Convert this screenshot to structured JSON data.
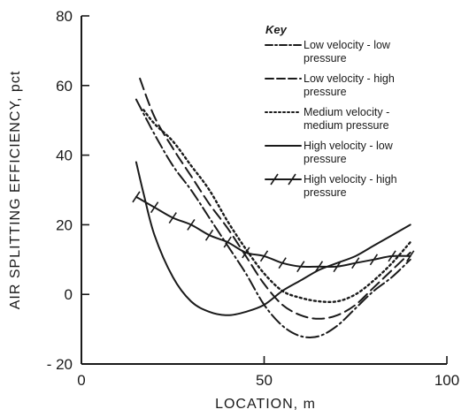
{
  "chart_data": {
    "type": "line",
    "xlabel": "LOCATION, m",
    "ylabel": "AIR SPLITTING EFFICIENCY, pct",
    "xlim": [
      0,
      100
    ],
    "ylim": [
      -20,
      80
    ],
    "x_ticks": [
      0,
      50,
      100
    ],
    "y_ticks": [
      -20,
      0,
      20,
      40,
      60,
      80
    ],
    "x_tick_labels": [
      "0",
      "50",
      "100"
    ],
    "y_tick_labels": [
      "- 20",
      "0",
      "20",
      "40",
      "60",
      "80"
    ],
    "grid": false,
    "legend": {
      "title": "Key",
      "placement": "top-right"
    },
    "series": [
      {
        "name": "Low velocity - low pressure",
        "legend_lines": [
          "Low velocity - low",
          "pressure"
        ],
        "style": "dashdot",
        "color": "#1a1a1a",
        "points": [
          [
            15,
            56
          ],
          [
            20,
            46
          ],
          [
            25,
            37
          ],
          [
            30,
            30
          ],
          [
            35,
            22
          ],
          [
            40,
            14
          ],
          [
            45,
            6
          ],
          [
            50,
            -3
          ],
          [
            55,
            -9
          ],
          [
            60,
            -12
          ],
          [
            65,
            -12
          ],
          [
            70,
            -9
          ],
          [
            75,
            -4
          ],
          [
            80,
            1
          ],
          [
            85,
            5
          ],
          [
            90,
            10
          ]
        ]
      },
      {
        "name": "Low velocity - high pressure",
        "legend_lines": [
          "Low velocity - high",
          "pressure"
        ],
        "style": "dashed",
        "color": "#1a1a1a",
        "points": [
          [
            16,
            62
          ],
          [
            20,
            51
          ],
          [
            25,
            42
          ],
          [
            30,
            34
          ],
          [
            35,
            26
          ],
          [
            40,
            19
          ],
          [
            45,
            11
          ],
          [
            50,
            3
          ],
          [
            55,
            -3
          ],
          [
            60,
            -6
          ],
          [
            65,
            -7
          ],
          [
            70,
            -6
          ],
          [
            75,
            -3
          ],
          [
            80,
            2
          ],
          [
            85,
            7
          ],
          [
            90,
            12
          ]
        ]
      },
      {
        "name": "Medium velocity - medium pressure",
        "legend_lines": [
          "Medium velocity -",
          "medium pressure"
        ],
        "style": "dotted",
        "color": "#1a1a1a",
        "points": [
          [
            17,
            53
          ],
          [
            20,
            49
          ],
          [
            25,
            44
          ],
          [
            30,
            37
          ],
          [
            35,
            30
          ],
          [
            40,
            21
          ],
          [
            45,
            13
          ],
          [
            50,
            6
          ],
          [
            55,
            1
          ],
          [
            60,
            -1
          ],
          [
            65,
            -2
          ],
          [
            70,
            -2
          ],
          [
            75,
            0
          ],
          [
            80,
            4
          ],
          [
            85,
            9
          ],
          [
            90,
            15
          ]
        ]
      },
      {
        "name": "High velocity - low pressure",
        "legend_lines": [
          "High velocity - low",
          "pressure"
        ],
        "style": "solid",
        "color": "#1a1a1a",
        "points": [
          [
            15,
            38
          ],
          [
            17,
            29
          ],
          [
            20,
            17
          ],
          [
            25,
            5
          ],
          [
            30,
            -2
          ],
          [
            35,
            -5
          ],
          [
            40,
            -6
          ],
          [
            45,
            -5
          ],
          [
            50,
            -3
          ],
          [
            55,
            1
          ],
          [
            60,
            4
          ],
          [
            65,
            7
          ],
          [
            70,
            9
          ],
          [
            75,
            11
          ],
          [
            80,
            14
          ],
          [
            85,
            17
          ],
          [
            90,
            20
          ]
        ]
      },
      {
        "name": "High velocity - high pressure",
        "legend_lines": [
          "High velocity - high",
          "pressure"
        ],
        "style": "solid-with-ticks",
        "color": "#1a1a1a",
        "points": [
          [
            15,
            28
          ],
          [
            20,
            25
          ],
          [
            25,
            22
          ],
          [
            30,
            20
          ],
          [
            35,
            17
          ],
          [
            40,
            15
          ],
          [
            45,
            12
          ],
          [
            50,
            11
          ],
          [
            55,
            9
          ],
          [
            60,
            8
          ],
          [
            65,
            8
          ],
          [
            70,
            8
          ],
          [
            75,
            9
          ],
          [
            80,
            10
          ],
          [
            85,
            11
          ],
          [
            90,
            11
          ]
        ]
      }
    ]
  }
}
